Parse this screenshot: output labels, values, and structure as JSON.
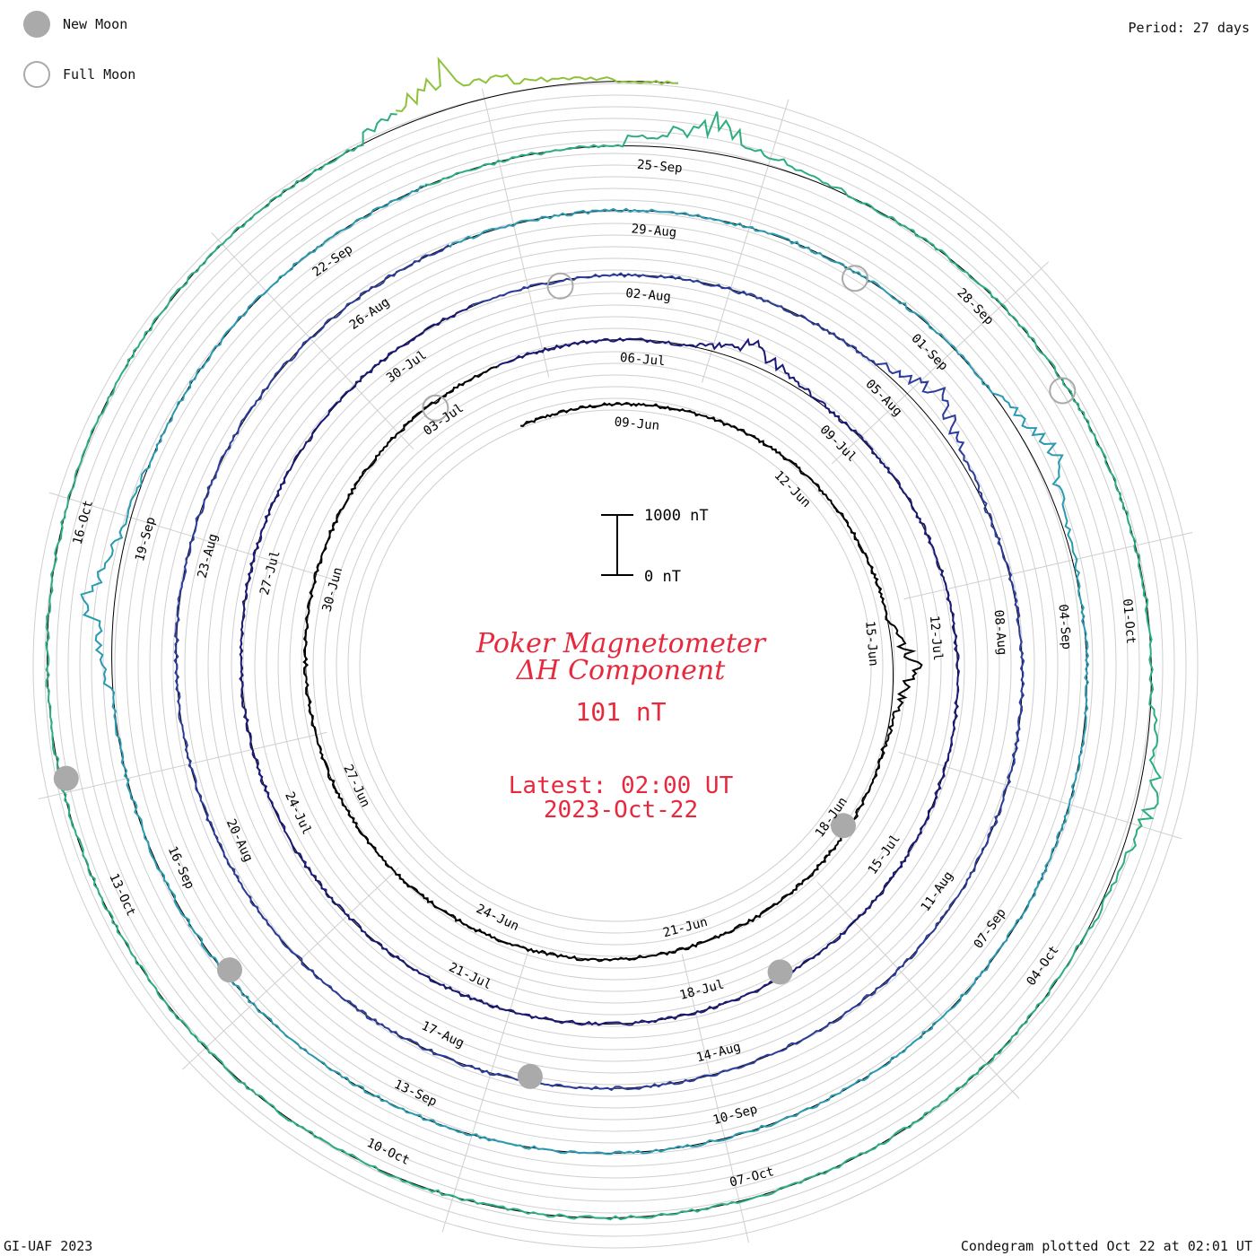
{
  "header": {
    "period_label": "Period: 27 days"
  },
  "legend": {
    "new_moon_label": "New Moon",
    "full_moon_label": "Full Moon",
    "new_moon_color": "#aaaaaa",
    "full_moon_color": "#aaaaaa"
  },
  "footer": {
    "left": "GI-UAF 2023",
    "right": "Condegram plotted Oct 22 at 02:01 UT"
  },
  "center": {
    "title_line1": "Poker Magnetometer",
    "title_line2": "ΔH Component",
    "baseline_value": "101 nT",
    "latest_line1": "Latest: 02:00 UT",
    "latest_line2": "2023-Oct-22",
    "scale_top_label": "1000 nT",
    "scale_bottom_label": "0 nT",
    "text_color": "#e8283c"
  },
  "chart_data": {
    "type": "line",
    "layout": "spiral condegram",
    "period_days": 27,
    "baseline_nT": 101,
    "scale_bar_nT": [
      0,
      1000
    ],
    "start_date": "2023-06-07",
    "end_date": "2023-10-22",
    "time_of_latest_UT": "02:00",
    "series_colors_inner_to_outer": [
      "#000000",
      "#1a1a78",
      "#2b3c9a",
      "#2a9ab0",
      "#2cae7e",
      "#8ec23a",
      "#b3a12a",
      "#c8751c",
      "#c01818"
    ],
    "date_labels": [
      "09-Jun",
      "12-Jun",
      "15-Jun",
      "18-Jun",
      "21-Jun",
      "24-Jun",
      "27-Jun",
      "30-Jun",
      "03-Jul",
      "06-Jul",
      "09-Jul",
      "12-Jul",
      "15-Jul",
      "18-Jul",
      "21-Jul",
      "24-Jul",
      "27-Jul",
      "30-Jul",
      "02-Aug",
      "05-Aug",
      "08-Aug",
      "11-Aug",
      "14-Aug",
      "17-Aug",
      "20-Aug",
      "23-Aug",
      "26-Aug",
      "29-Aug",
      "01-Sep",
      "04-Sep",
      "07-Sep",
      "10-Sep",
      "13-Sep",
      "16-Sep",
      "19-Sep",
      "22-Sep",
      "25-Sep",
      "28-Sep",
      "01-Oct",
      "04-Oct",
      "07-Oct",
      "10-Oct",
      "13-Oct",
      "16-Oct"
    ],
    "new_moons": [
      "2023-06-18",
      "2023-07-17",
      "2023-08-16",
      "2023-09-15",
      "2023-10-14"
    ],
    "full_moons": [
      "2023-07-03",
      "2023-08-01",
      "2023-08-31",
      "2023-09-29"
    ],
    "storm_days_nT": [
      {
        "date": "2023-06-15",
        "peak_nT": 400
      },
      {
        "date": "2023-07-07",
        "peak_nT": 350
      },
      {
        "date": "2023-08-05",
        "peak_nT": 420
      },
      {
        "date": "2023-09-02",
        "peak_nT": 380
      },
      {
        "date": "2023-09-18",
        "peak_nT": 450
      },
      {
        "date": "2023-09-25",
        "peak_nT": 520
      },
      {
        "date": "2023-10-02",
        "peak_nT": 300
      },
      {
        "date": "2023-10-20",
        "peak_nT": 600
      }
    ]
  }
}
